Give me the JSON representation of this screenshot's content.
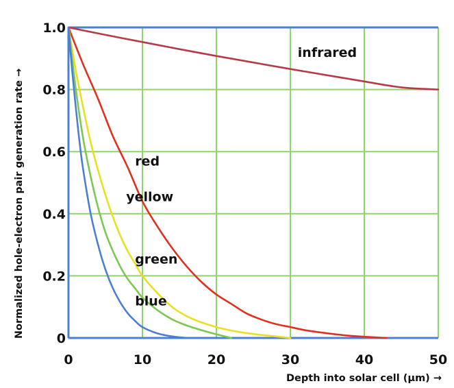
{
  "chart_data": {
    "type": "line",
    "xlabel": "Depth into solar cell (µm) →",
    "ylabel": "Normalized hole-electron pair generation rate →",
    "xlim": [
      0,
      50
    ],
    "ylim": [
      0,
      1.0
    ],
    "x_ticks": [
      "0",
      "10",
      "20",
      "30",
      "40",
      "50"
    ],
    "y_ticks": [
      "0",
      "0.2",
      "0.4",
      "0.6",
      "0.8",
      "1.0"
    ],
    "grid": true,
    "colors": {
      "grid": "#8fd36a",
      "axis": "#4a7fd4",
      "infrared": "#b83a4a",
      "red": "#e03020",
      "yellow": "#e8e020",
      "green": "#7cc850",
      "blue": "#4a7fd4"
    },
    "series": [
      {
        "name": "infrared",
        "color": "#b83a4a",
        "points": [
          [
            0,
            1.0
          ],
          [
            5,
            0.976
          ],
          [
            10,
            0.953
          ],
          [
            15,
            0.93
          ],
          [
            20,
            0.908
          ],
          [
            25,
            0.887
          ],
          [
            30,
            0.866
          ],
          [
            35,
            0.846
          ],
          [
            40,
            0.826
          ],
          [
            45,
            0.807
          ],
          [
            50,
            0.8
          ]
        ]
      },
      {
        "name": "red",
        "color": "#e03020",
        "points": [
          [
            0,
            1.0
          ],
          [
            2,
            0.88
          ],
          [
            4,
            0.77
          ],
          [
            6,
            0.65
          ],
          [
            8,
            0.55
          ],
          [
            10,
            0.44
          ],
          [
            12,
            0.36
          ],
          [
            14,
            0.29
          ],
          [
            16,
            0.23
          ],
          [
            18,
            0.18
          ],
          [
            20,
            0.14
          ],
          [
            22,
            0.11
          ],
          [
            24,
            0.08
          ],
          [
            26,
            0.06
          ],
          [
            28,
            0.045
          ],
          [
            30,
            0.035
          ],
          [
            32,
            0.025
          ],
          [
            34,
            0.018
          ],
          [
            36,
            0.012
          ],
          [
            38,
            0.007
          ],
          [
            40,
            0.004
          ],
          [
            43,
            0.0
          ]
        ]
      },
      {
        "name": "yellow",
        "color": "#e8e020",
        "points": [
          [
            0,
            1.0
          ],
          [
            1,
            0.86
          ],
          [
            2,
            0.74
          ],
          [
            3,
            0.63
          ],
          [
            4,
            0.54
          ],
          [
            5,
            0.46
          ],
          [
            6,
            0.39
          ],
          [
            7,
            0.33
          ],
          [
            8,
            0.28
          ],
          [
            9,
            0.24
          ],
          [
            10,
            0.2
          ],
          [
            12,
            0.145
          ],
          [
            14,
            0.1
          ],
          [
            16,
            0.07
          ],
          [
            18,
            0.05
          ],
          [
            20,
            0.035
          ],
          [
            22,
            0.024
          ],
          [
            24,
            0.016
          ],
          [
            26,
            0.01
          ],
          [
            28,
            0.005
          ],
          [
            30,
            0.0
          ]
        ]
      },
      {
        "name": "green",
        "color": "#7cc850",
        "points": [
          [
            0,
            1.0
          ],
          [
            1,
            0.8
          ],
          [
            2,
            0.64
          ],
          [
            3,
            0.52
          ],
          [
            4,
            0.42
          ],
          [
            5,
            0.34
          ],
          [
            6,
            0.28
          ],
          [
            7,
            0.23
          ],
          [
            8,
            0.19
          ],
          [
            9,
            0.16
          ],
          [
            10,
            0.13
          ],
          [
            12,
            0.09
          ],
          [
            14,
            0.06
          ],
          [
            16,
            0.04
          ],
          [
            18,
            0.025
          ],
          [
            20,
            0.012
          ],
          [
            22,
            0.0
          ]
        ]
      },
      {
        "name": "blue",
        "color": "#4a7fd4",
        "points": [
          [
            0,
            1.0
          ],
          [
            0.5,
            0.86
          ],
          [
            1,
            0.74
          ],
          [
            1.5,
            0.63
          ],
          [
            2,
            0.54
          ],
          [
            3,
            0.4
          ],
          [
            4,
            0.3
          ],
          [
            5,
            0.22
          ],
          [
            6,
            0.16
          ],
          [
            7,
            0.115
          ],
          [
            8,
            0.08
          ],
          [
            9,
            0.055
          ],
          [
            10,
            0.035
          ],
          [
            12,
            0.015
          ],
          [
            14,
            0.005
          ],
          [
            16,
            0.0
          ]
        ]
      }
    ],
    "labels": [
      {
        "text": "infrared",
        "x": 31,
        "y": 0.905
      },
      {
        "text": "red",
        "x": 9,
        "y": 0.555
      },
      {
        "text": "yellow",
        "x": 7.8,
        "y": 0.44
      },
      {
        "text": "green",
        "x": 9,
        "y": 0.24
      },
      {
        "text": "blue",
        "x": 9,
        "y": 0.105
      }
    ]
  }
}
